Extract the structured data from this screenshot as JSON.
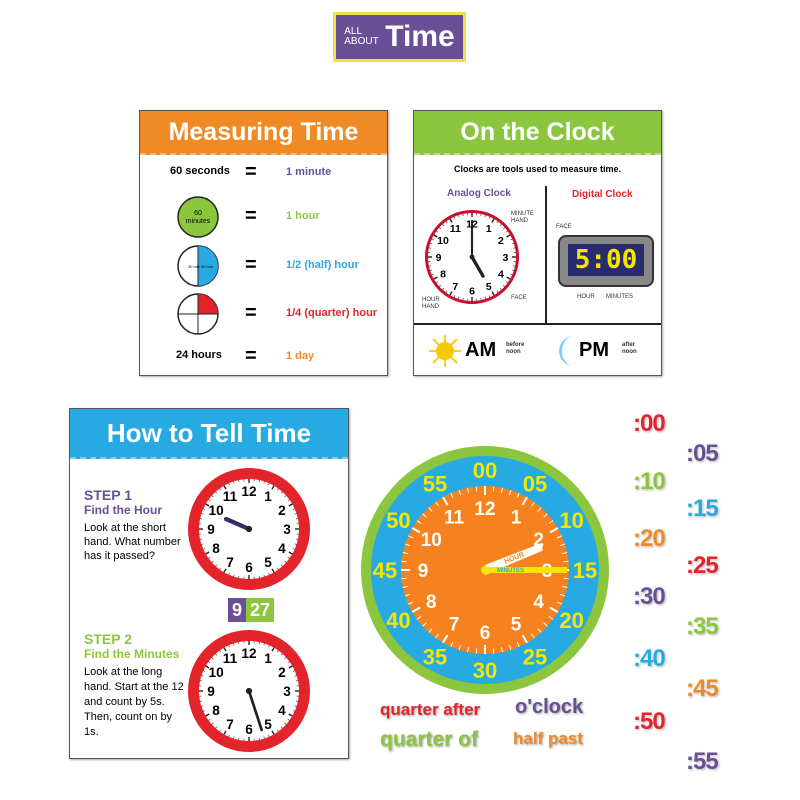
{
  "title": {
    "small": "ALL ABOUT",
    "big": "Time",
    "bg": "#6b4f96",
    "border": "#f2e04a"
  },
  "measuring": {
    "heading": "Measuring Time",
    "color": "#f08a24",
    "equals": "=",
    "rows": [
      {
        "left": "60 seconds",
        "right": "1 minute",
        "color": "#6b4f96"
      },
      {
        "left_icon": "60 minutes",
        "right": "1 hour",
        "color": "#8cc63f"
      },
      {
        "left_icon": "30 minutes",
        "right": "(half) hour",
        "fraction": "1/2",
        "color": "#27aae1"
      },
      {
        "left_icon": "15 minutes",
        "right": "(quarter) hour",
        "fraction": "1/4",
        "color": "#e3242b"
      },
      {
        "left": "24 hours",
        "right": "1 day",
        "color": "#f08a24"
      }
    ]
  },
  "clock_panel": {
    "heading": "On the Clock",
    "color": "#8cc63f",
    "subtitle": "Clocks are tools used to measure time.",
    "analog": {
      "label": "Analog Clock",
      "minute_hand": "MINUTE HAND",
      "hour_hand": "HOUR HAND",
      "face": "FACE",
      "time": "5:00"
    },
    "digital": {
      "label": "Digital Clock",
      "display": "5:00",
      "face": "FACE",
      "hour": "HOUR",
      "minutes": "MINUTES"
    },
    "am": {
      "label": "AM",
      "desc": "before noon"
    },
    "pm": {
      "label": "PM",
      "desc": "after noon"
    }
  },
  "tell": {
    "heading": "How to Tell Time",
    "color": "#27aae1",
    "step1": {
      "title": "STEP 1",
      "subtitle": "Find the Hour",
      "text": "Look at the short hand. What number has it passed?",
      "time": "9:47"
    },
    "step2": {
      "title": "STEP 2",
      "subtitle": "Find the Minutes",
      "text": "Look at the long hand. Start at the 12 and count by 5s. Then, count on by 1s.",
      "time": "9:27"
    },
    "digital": {
      "hour": "9",
      "minutes": "27"
    }
  },
  "big_clock": {
    "hour_label": "HOUR",
    "minute_label": "MINUTES",
    "minutes": [
      "00",
      "05",
      "10",
      "15",
      "20",
      "25",
      "30",
      "35",
      "40",
      "45",
      "50",
      "55"
    ]
  },
  "minute_cards": [
    ":00",
    ":05",
    ":10",
    ":15",
    ":20",
    ":25",
    ":30",
    ":35",
    ":40",
    ":45",
    ":50",
    ":55"
  ],
  "card_colors": [
    "#e3242b",
    "#6b4f96",
    "#8cc63f",
    "#27aae1",
    "#f08a24"
  ],
  "words": [
    "quarter after",
    "o'clock",
    "quarter of",
    "half past"
  ]
}
